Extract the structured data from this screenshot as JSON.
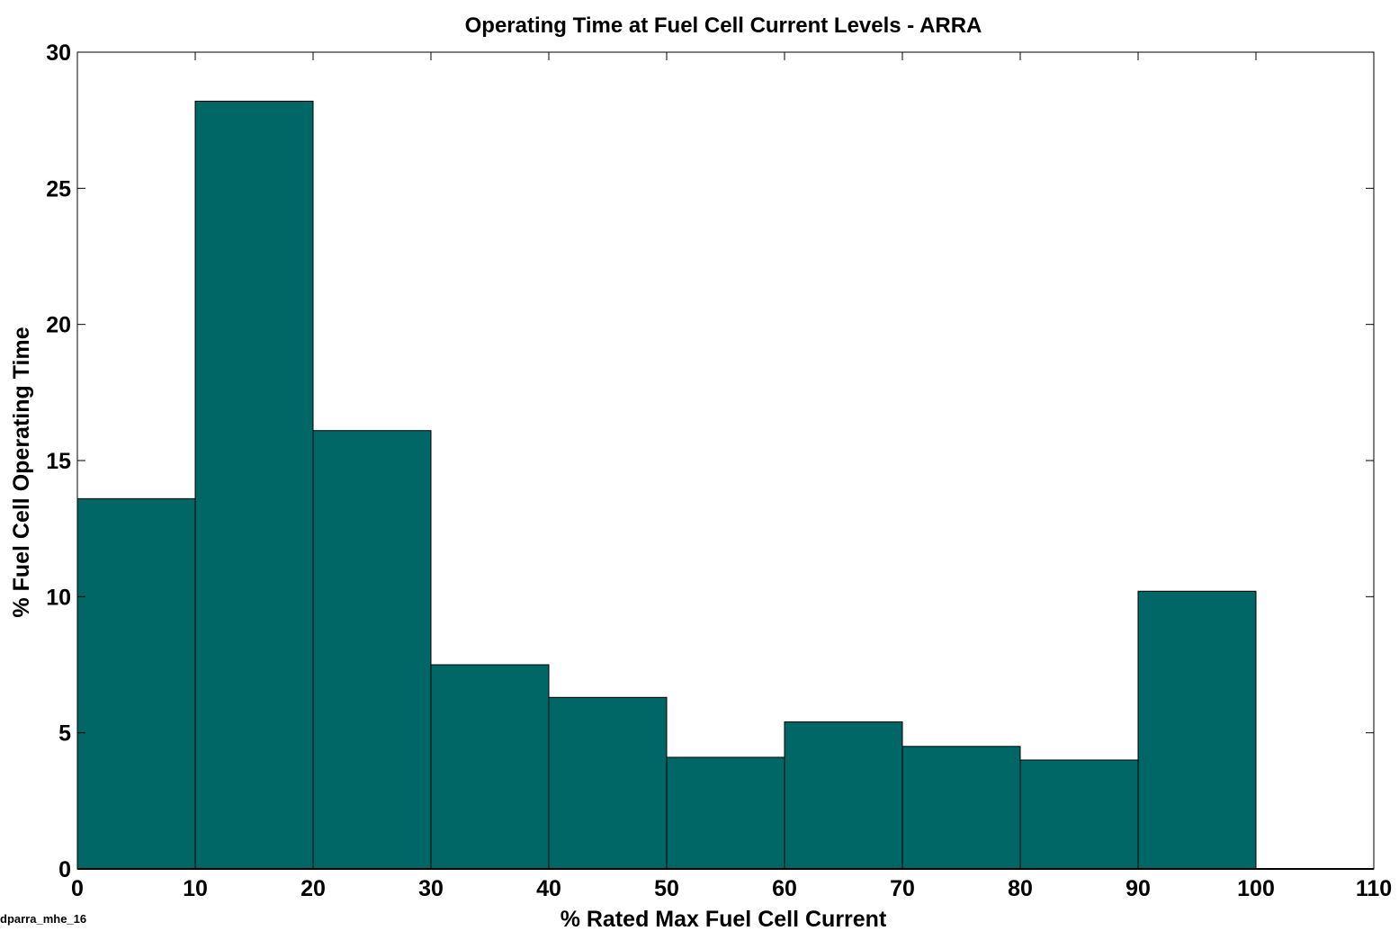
{
  "chart_data": {
    "type": "bar",
    "title": "Operating Time at Fuel Cell Current Levels - ARRA",
    "xlabel": "% Rated Max Fuel Cell Current",
    "ylabel": "% Fuel Cell Operating Time",
    "bin_edges": [
      0,
      10,
      20,
      30,
      40,
      50,
      60,
      70,
      80,
      90,
      100,
      110
    ],
    "values": [
      13.6,
      28.2,
      16.1,
      7.5,
      6.3,
      4.1,
      5.4,
      4.5,
      4.0,
      10.2,
      0
    ],
    "xlim": [
      0,
      110
    ],
    "ylim": [
      0,
      30
    ],
    "xticks": [
      0,
      10,
      20,
      30,
      40,
      50,
      60,
      70,
      80,
      90,
      100,
      110
    ],
    "yticks": [
      0,
      5,
      10,
      15,
      20,
      25,
      30
    ],
    "bar_color": "#006666",
    "grid": false,
    "legend": "none"
  },
  "footer_text": "dparra_mhe_16"
}
